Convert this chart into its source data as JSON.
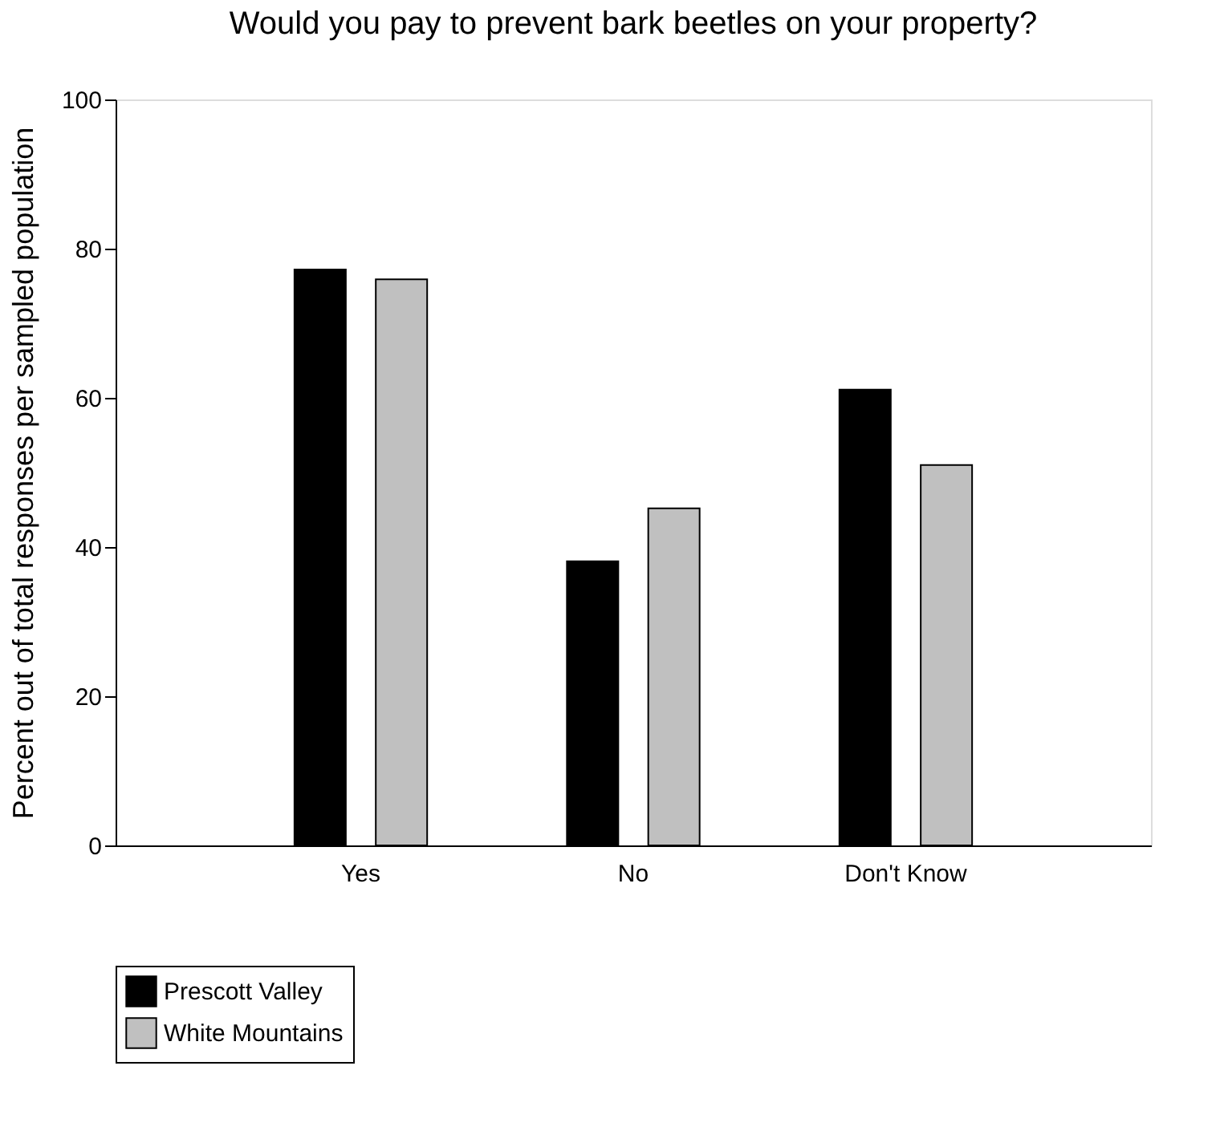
{
  "chart_data": {
    "type": "bar",
    "title": "Would you pay to prevent bark beetles on your property?",
    "ylabel": "Percent out of total responses per sampled population",
    "categories": [
      "Yes",
      "No",
      "Don't Know"
    ],
    "series": [
      {
        "name": "Prescott Valley",
        "color": "#000000",
        "values": [
          77.2,
          38.1,
          61.1
        ]
      },
      {
        "name": "White Mountains",
        "color": "#c0c0c0",
        "values": [
          75.9,
          45.2,
          51.0
        ]
      }
    ],
    "ylim": [
      0,
      100
    ],
    "yticks": [
      0,
      20,
      40,
      60,
      80,
      100
    ],
    "grid": false,
    "legend": "bottom left"
  }
}
